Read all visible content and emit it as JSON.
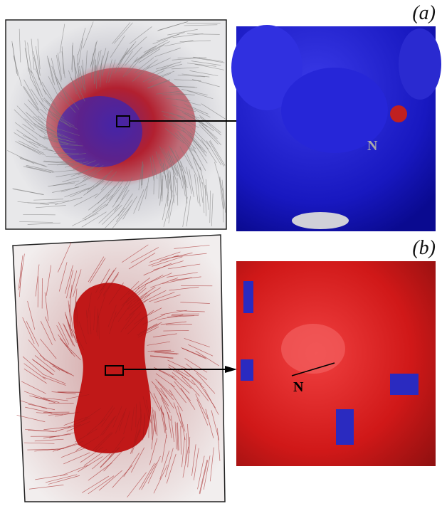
{
  "panels": [
    {
      "label": "(a)",
      "zoom_label": "N"
    },
    {
      "label": "(b)",
      "zoom_label": "N"
    }
  ]
}
